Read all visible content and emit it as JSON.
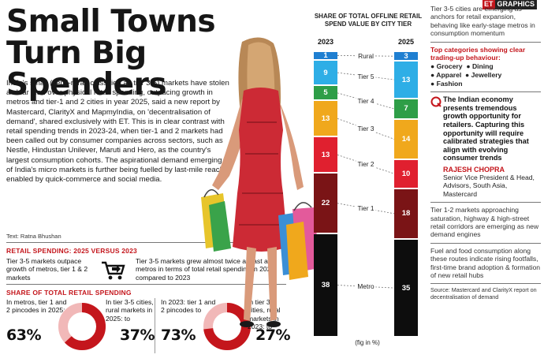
{
  "header": {
    "title": "Small Towns Turn Big Spenders",
    "logo_et": "ET",
    "logo_text": "GRAPHICS"
  },
  "article": {
    "body": "India's small (semi-rural, classified as tier 3-5) markets have stolen a clear lead over physical retail spending, outpacing growth in metros and tier-1 and 2 cities in year 2025, said a new report by Mastercard, ClarityX and MapmyIndia, on 'decentralisation of demand', shared exclusively with ET. This is in clear contrast with retail spending trends in 2023-24, when tier-1 and 2 markets had been called out by consumer companies across sectors, such as Nestle, Hindustan Unilever, Maruti and Hero, as the country's largest consumption cohorts. The aspirational demand emerging out of India's micro markets is further being fuelled by last-mile reach enabled by quick-commerce and social media.",
    "byline": "Text: Ratna Bhushan"
  },
  "retail_spending": {
    "heading": "RETAIL SPENDING: 2025 VERSUS 2023",
    "left_text": "Tier 3-5 markets outpace growth of metros, tier 1 & 2 markets",
    "right_text": "Tier 3-5 markets grew almost twice as fast as metros in terms of total retail spending in 2025 compared to 2023"
  },
  "share_section": {
    "heading": "SHARE OF TOTAL RETAIL SPENDING",
    "items": [
      {
        "label": "In metros, tier 1 and 2 pincodes in 2025:",
        "value": "63%",
        "pct": 63
      },
      {
        "label": "In tier 3-5 cities, rural markets in 2025: to",
        "value": "37%",
        "pct": 37
      },
      {
        "label": "In 2023: tier 1 and 2 pincodes to",
        "value": "73%",
        "pct": 73
      },
      {
        "label": "In tier 3-5 cities, rural markets in 2023: to",
        "value": "27%",
        "pct": 27
      }
    ]
  },
  "chart_data": {
    "type": "stacked-bar",
    "title": "SHARE OF TOTAL OFFLINE RETAIL SPEND VALUE BY CITY TIER",
    "note": "(fig in %)",
    "categories": [
      "2023",
      "2025"
    ],
    "series": [
      {
        "name": "Rural",
        "values": [
          1,
          3
        ],
        "color": "#1f7fd1"
      },
      {
        "name": "Tier 5",
        "values": [
          9,
          13
        ],
        "color": "#2eaee6"
      },
      {
        "name": "Tier 4",
        "values": [
          5,
          7
        ],
        "color": "#2e9e47"
      },
      {
        "name": "Tier 3",
        "values": [
          13,
          14
        ],
        "color": "#f0a81c"
      },
      {
        "name": "Tier 2",
        "values": [
          13,
          10
        ],
        "color": "#e0202f"
      },
      {
        "name": "Tier 1",
        "values": [
          22,
          18
        ],
        "color": "#7a1416"
      },
      {
        "name": "Metro",
        "values": [
          38,
          35
        ],
        "color": "#0d0d0d"
      }
    ]
  },
  "right_panel": {
    "intro": "Tier 3-5 cities are emerging as anchors for retail expansion, behaving like early-stage metros in consumption momentum",
    "categories_heading": "Top categories showing clear trading-up behaviour:",
    "categories": [
      "Grocery",
      "Dining",
      "Apparel",
      "Jewellery",
      "Fashion"
    ],
    "quote": "The Indian economy presents tremendous growth opportunity for retailers. Capturing this opportunity will require calibrated strategies that align with evolving consumer trends",
    "quote_name": "RAJESH CHOPRA",
    "quote_role": "Senior Vice President & Head, Advisors, South Asia, Mastercard",
    "note1": "Tier 1-2 markets approaching saturation, highway & high-street retail corridors are emerging as new demand engines",
    "note2": "Fuel and food consumption along these routes indicate rising footfalls, first-time brand adoption & formation of new retail hubs",
    "source": "Source: Mastercard and ClarityX report on decentralisation of demand"
  }
}
